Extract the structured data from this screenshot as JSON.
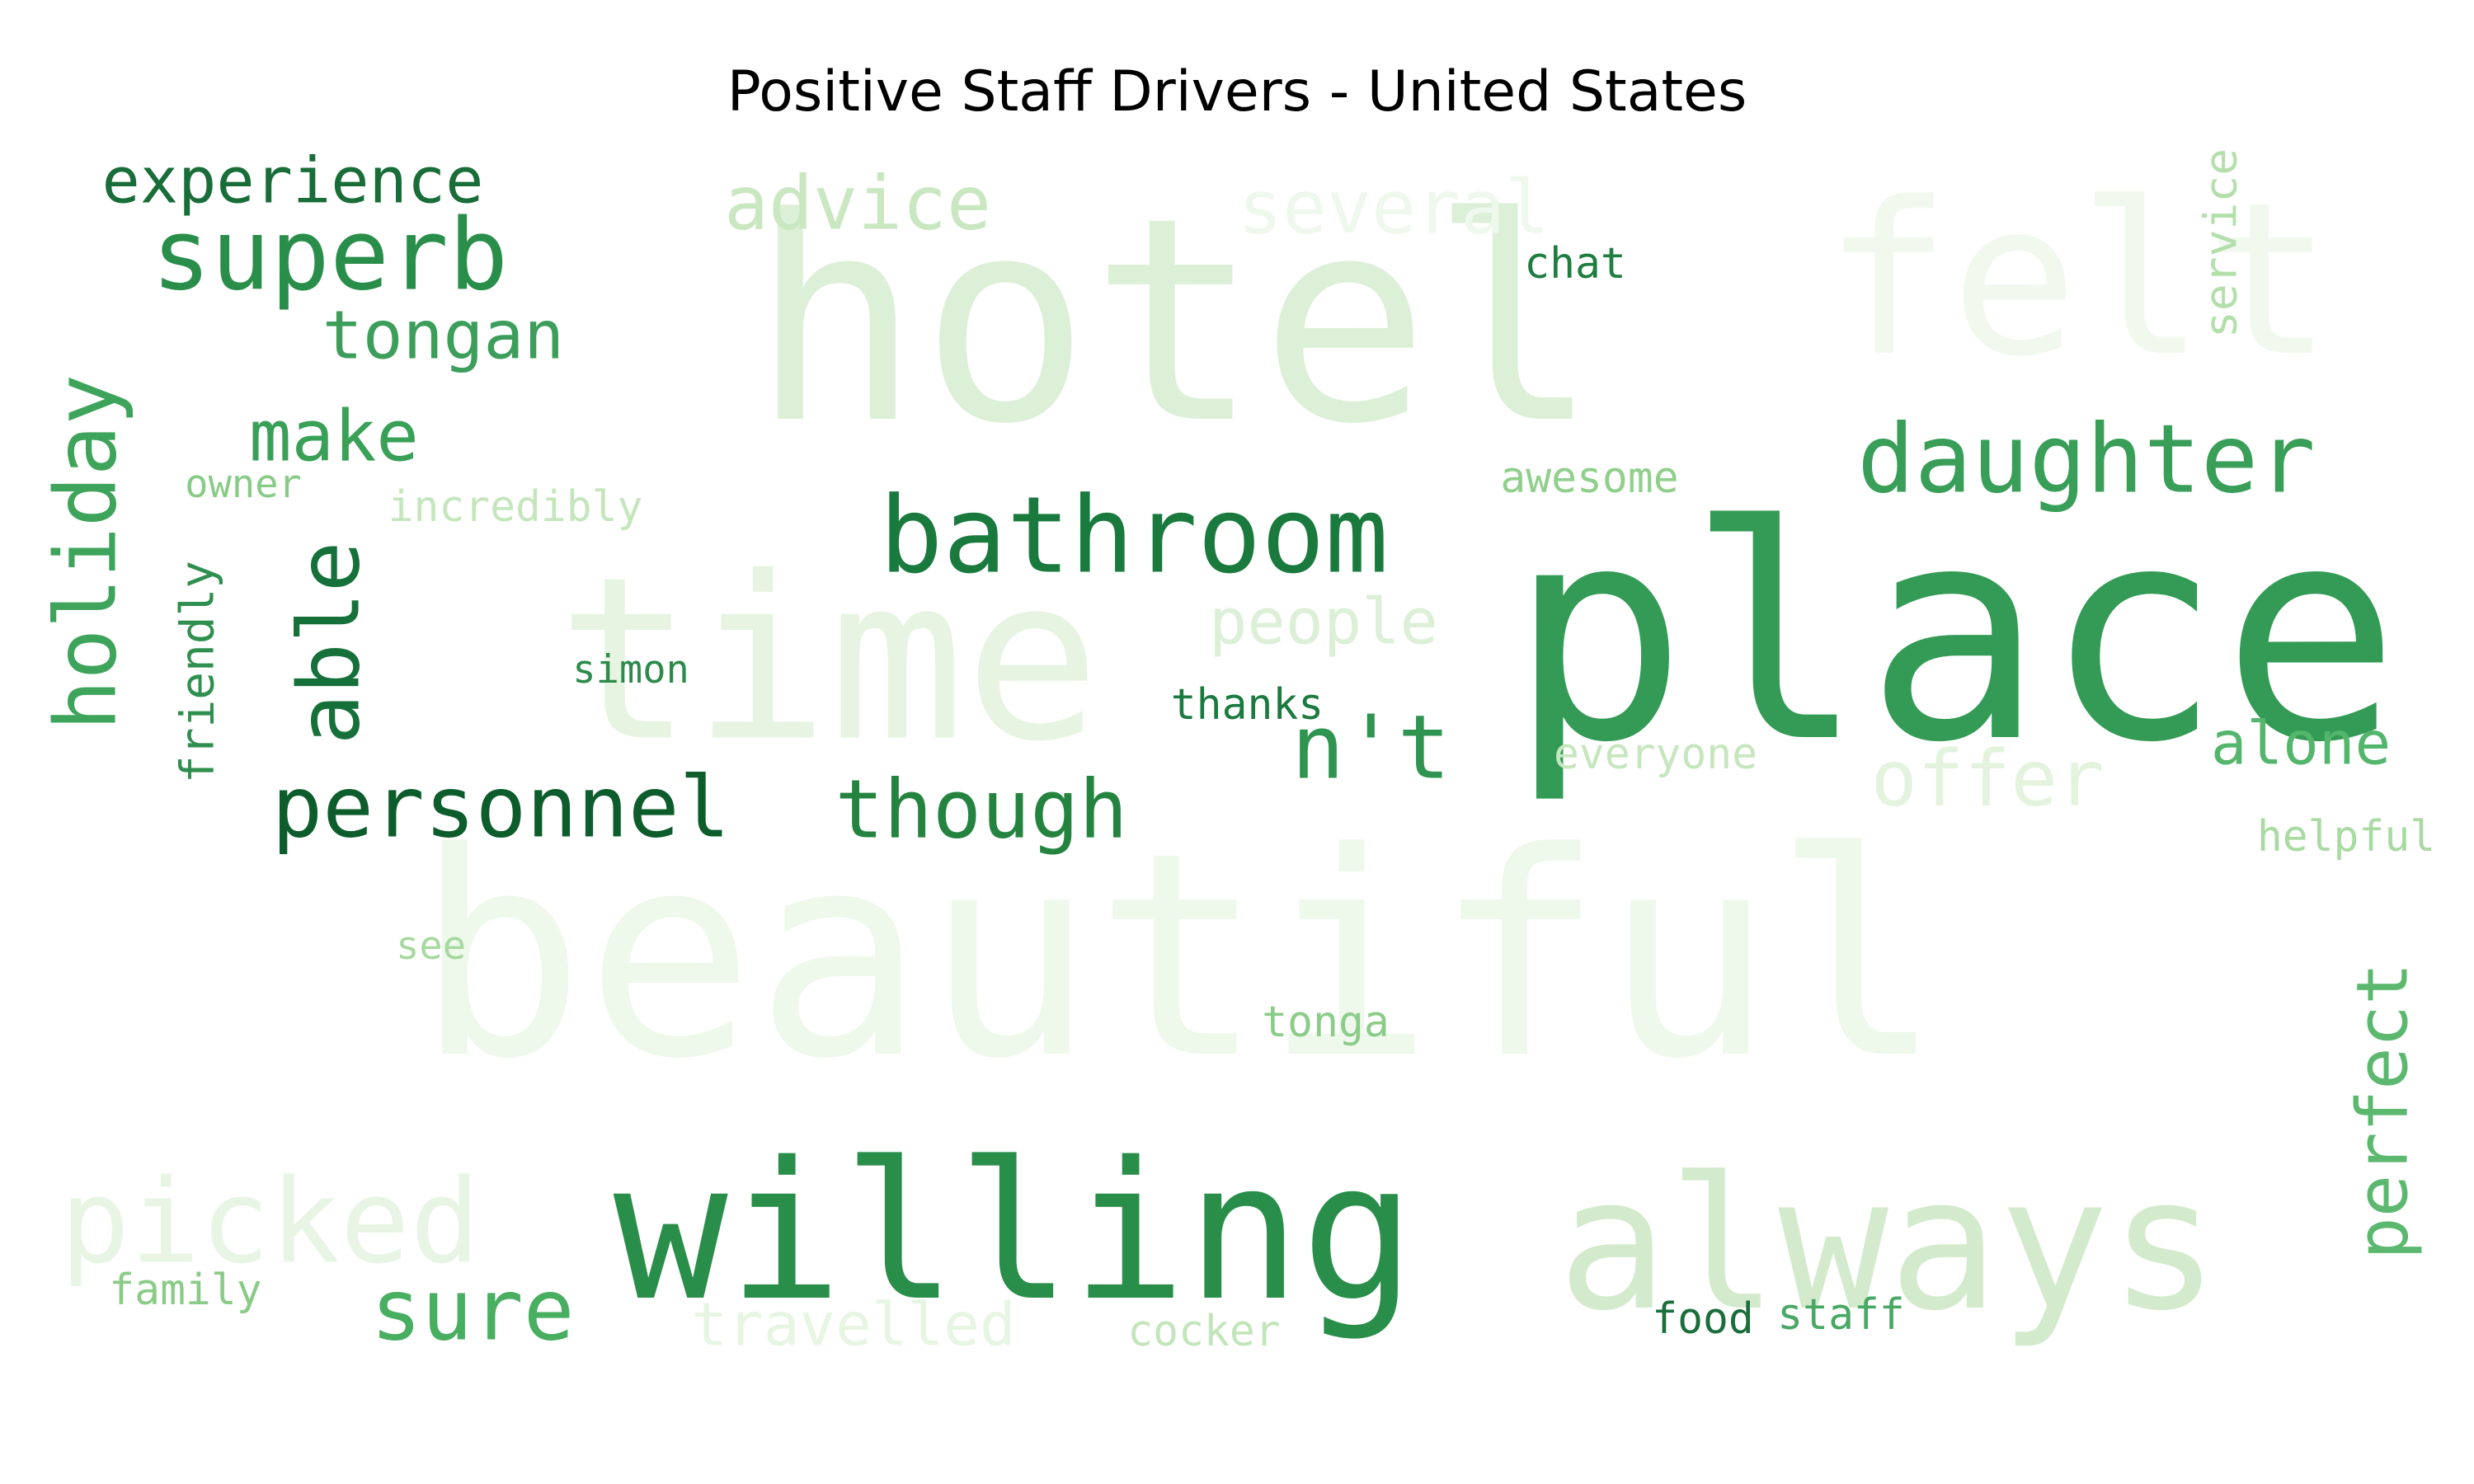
{
  "title": "Positive Staff Drivers - United States",
  "colormap": "Greens",
  "words": [
    {
      "text": "hotel",
      "color": "#dcefd7"
    },
    {
      "text": "felt",
      "color": "#f1f9ef"
    },
    {
      "text": "beautiful",
      "color": "#eef8eb"
    },
    {
      "text": "time",
      "color": "#e6f4e1"
    },
    {
      "text": "place",
      "color": "#339b55"
    },
    {
      "text": "willing",
      "color": "#2a8e4b"
    },
    {
      "text": "always",
      "color": "#d3ebcc"
    },
    {
      "text": "bathroom",
      "color": "#1a7a3e"
    },
    {
      "text": "daughter",
      "color": "#389e58"
    },
    {
      "text": "superb",
      "color": "#2a8e4b"
    },
    {
      "text": "personnel",
      "color": "#0d5c2c"
    },
    {
      "text": "though",
      "color": "#24843f"
    },
    {
      "text": "perfect",
      "color": "#5cb86f"
    },
    {
      "text": "picked",
      "color": "#e8f5e5"
    },
    {
      "text": "sure",
      "color": "#48ae60"
    },
    {
      "text": "advice",
      "color": "#c9e7c0"
    },
    {
      "text": "several",
      "color": "#eff8ec"
    },
    {
      "text": "tongan",
      "color": "#3c9e5a"
    },
    {
      "text": "make",
      "color": "#39a057"
    },
    {
      "text": "holiday",
      "color": "#3ea45b"
    },
    {
      "text": "able",
      "color": "#16703a"
    },
    {
      "text": "experience",
      "color": "#196d38"
    },
    {
      "text": "offer",
      "color": "#e3f3de"
    },
    {
      "text": "n't",
      "color": "#2f9450"
    },
    {
      "text": "alone",
      "color": "#54b56c"
    },
    {
      "text": "people",
      "color": "#dcefd7"
    },
    {
      "text": "travelled",
      "color": "#e7f5e3"
    },
    {
      "text": "friendly",
      "color": "#2f8f4e"
    },
    {
      "text": "simon",
      "color": "#2c8a4a"
    },
    {
      "text": "thanks",
      "color": "#1b7a40"
    },
    {
      "text": "chat",
      "color": "#1f7d3f"
    },
    {
      "text": "awesome",
      "color": "#90cf8c"
    },
    {
      "text": "owner",
      "color": "#88cb87"
    },
    {
      "text": "incredibly",
      "color": "#c5e6bd"
    },
    {
      "text": "everyone",
      "color": "#c6e6be"
    },
    {
      "text": "helpful",
      "color": "#a8daa2"
    },
    {
      "text": "service",
      "color": "#b3dfab"
    },
    {
      "text": "see",
      "color": "#a6d99f"
    },
    {
      "text": "tonga",
      "color": "#8ccc89"
    },
    {
      "text": "family",
      "color": "#8acb87"
    },
    {
      "text": "cocker",
      "color": "#c3e5bb"
    },
    {
      "text": "food",
      "color": "#1a6e3b"
    },
    {
      "text": "staff",
      "color": "#48a864"
    }
  ]
}
